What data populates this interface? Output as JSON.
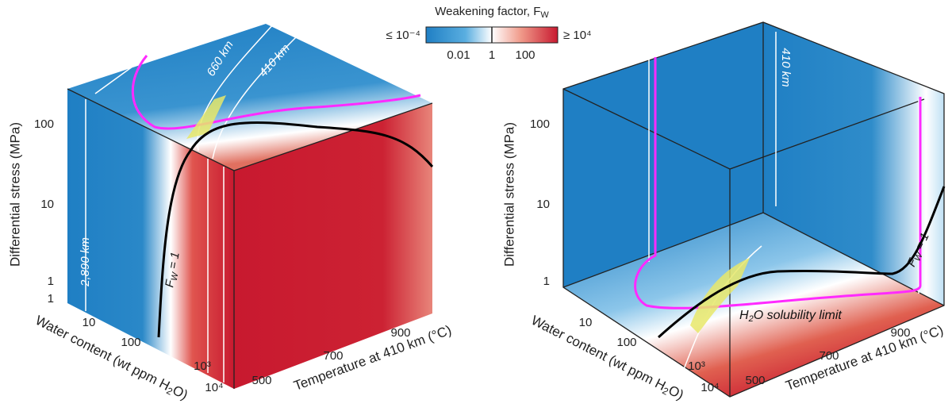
{
  "colorbar": {
    "title": "Weakening factor, F",
    "title_sub": "W",
    "min_label": "≤ 10⁻⁴",
    "max_label": "≥ 10⁴",
    "ticks": [
      "0.01",
      "1",
      "100"
    ]
  },
  "left_panel": {
    "stress_axis": {
      "label": "Differential stress (MPa)",
      "ticks": [
        "1",
        "10",
        "100"
      ]
    },
    "water_axis": {
      "label": "Water content (wt ppm H",
      "label_sub": "2",
      "label_end": "O)",
      "ticks": [
        "1",
        "10",
        "100",
        "10³",
        "10⁴"
      ]
    },
    "temperature_axis": {
      "label": "Temperature at 410 km (°C)",
      "ticks": [
        "500",
        "700",
        "900"
      ]
    },
    "annotations": [
      "660 km",
      "410 km",
      "2,890 km"
    ],
    "fw_label": {
      "main": "F",
      "sub": "W",
      "rest": " = 1"
    }
  },
  "right_panel": {
    "stress_axis": {
      "label": "Differential stress (MPa)",
      "ticks": [
        "1",
        "10",
        "100"
      ]
    },
    "water_axis": {
      "label": "Water content (wt ppm H",
      "label_sub": "2",
      "label_end": "O)",
      "ticks": [
        "10",
        "100",
        "10³",
        "10⁴"
      ]
    },
    "temperature_axis": {
      "label": "Temperature at 410 km (°C)",
      "ticks": [
        "500",
        "700",
        "900"
      ]
    },
    "annotations": [
      "410 km"
    ],
    "fw_label": {
      "main": "F",
      "sub": "W",
      "rest": " = 1"
    },
    "solubility_label": {
      "main": "H",
      "sub": "2",
      "rest": "O solubility limit"
    }
  }
}
